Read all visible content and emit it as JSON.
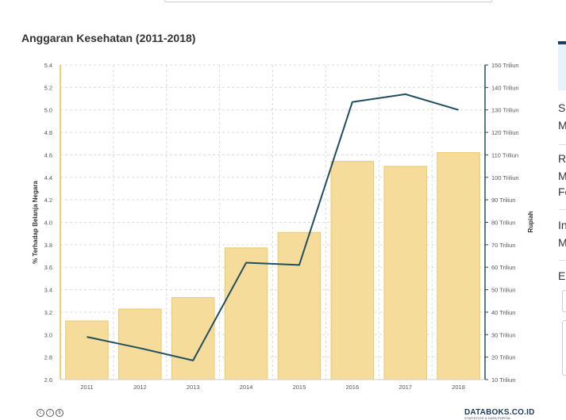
{
  "title": "Anggaran Kesehatan (2011-2018)",
  "chart_data": {
    "type": "bar",
    "categories": [
      "2011",
      "2012",
      "2013",
      "2014",
      "2015",
      "2016",
      "2017",
      "2018"
    ],
    "series": [
      {
        "type": "bar",
        "axis": "right",
        "values": [
          36.1,
          41.4,
          46.5,
          68.6,
          75.5,
          107.1,
          104.9,
          111.0
        ],
        "color": "#f5dc9b"
      },
      {
        "type": "line",
        "axis": "left",
        "values": [
          2.98,
          2.88,
          2.77,
          3.64,
          3.62,
          5.07,
          5.14,
          5.0
        ],
        "color": "#1f4e5f"
      }
    ],
    "ylabel_left": "% Terhadap Belanja Negara",
    "ylabel_right": "Rupiah",
    "ylim_left": [
      2.6,
      5.4
    ],
    "yticks_left": [
      "2.6",
      "2.8",
      "3.0",
      "3.2",
      "3.4",
      "3.6",
      "3.8",
      "4.0",
      "4.2",
      "4.4",
      "4.6",
      "4.8",
      "5.0",
      "5.2",
      "5.4"
    ],
    "ylim_right": [
      10,
      150
    ],
    "yticks_right": [
      "10 Triliun",
      "20 Triliun",
      "30 Triliun",
      "40 Triliun",
      "50 Triliun",
      "60 Triliun",
      "70 Triliun",
      "80 Triliun",
      "90 Triliun",
      "100 Triliun",
      "110 Triliun",
      "120 Triliun",
      "130 Triliun",
      "140 Triliun",
      "150 Triliun"
    ],
    "grid": true,
    "legend": "none",
    "colors": {
      "left_axis": "#f2c230",
      "right_axis": "#1f4e5f"
    }
  },
  "footer": {
    "license_icons": [
      "cc-icon",
      "by-icon",
      "nc-icon"
    ],
    "brand": "DATABOKS.CO.ID",
    "brand_sub": "STATISTICS & DATA PORTAL"
  },
  "sidebar": {
    "items": [
      {
        "heading": "Su",
        "value": "M"
      },
      {
        "heading": "Ri",
        "value": "M",
        "value2": "Fe"
      },
      {
        "heading": "In",
        "value": "M"
      },
      {
        "heading": "Er"
      }
    ]
  }
}
